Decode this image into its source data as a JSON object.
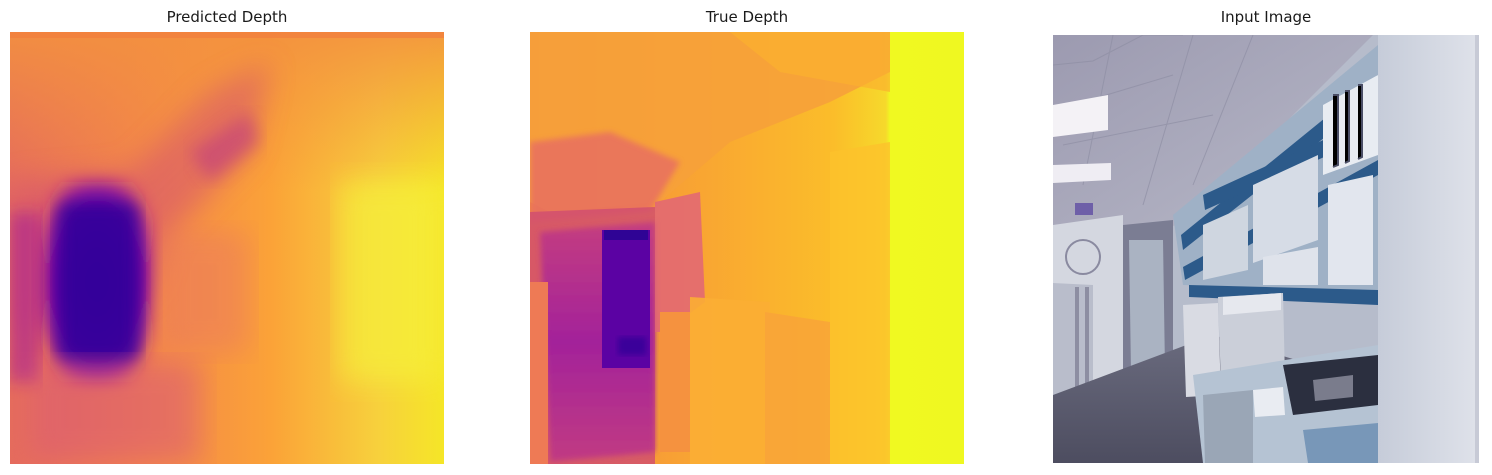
{
  "figure": {
    "panels": [
      {
        "title": "Predicted Depth",
        "colormap": "plasma"
      },
      {
        "title": "True Depth",
        "colormap": "plasma"
      },
      {
        "title": "Input Image",
        "content": "office corridor with blue bookshelves and printers"
      }
    ]
  },
  "colors": {
    "plasma_low": "#2a0593",
    "plasma_mid": "#b83289",
    "plasma_mid_high": "#f3813b",
    "plasma_high": "#f0f921",
    "shelf_blue": "#2c5a8a",
    "wall": "#c9d0dc",
    "ceiling": "#a7a6b8"
  }
}
